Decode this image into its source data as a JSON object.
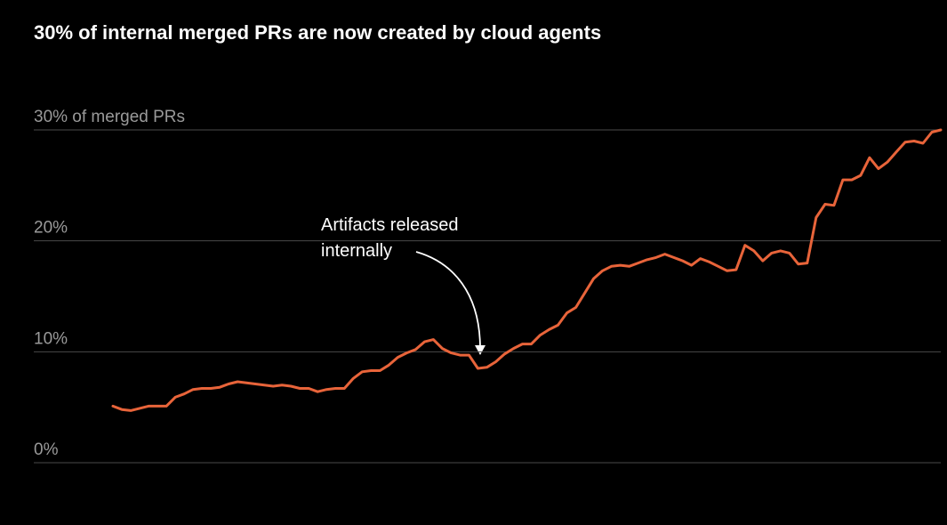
{
  "chart_data": {
    "type": "line",
    "title": "30% of internal merged PRs are now created by cloud agents",
    "annotation": [
      "Artifacts released",
      "internally"
    ],
    "color": "#e8643a",
    "grid": true,
    "ylim": [
      0,
      30
    ],
    "yticks": [
      {
        "value": 0,
        "label": "0%"
      },
      {
        "value": 10,
        "label": "10%"
      },
      {
        "value": 20,
        "label": "20%"
      },
      {
        "value": 30,
        "label": "30% of merged PRs"
      }
    ],
    "values": [
      5.1,
      4.8,
      4.7,
      4.9,
      5.1,
      5.1,
      5.1,
      5.9,
      6.2,
      6.6,
      6.7,
      6.7,
      6.8,
      7.1,
      7.3,
      7.2,
      7.1,
      7.0,
      6.9,
      7.0,
      6.9,
      6.7,
      6.7,
      6.4,
      6.6,
      6.7,
      6.7,
      7.6,
      8.2,
      8.3,
      8.3,
      8.8,
      9.5,
      9.9,
      10.2,
      10.9,
      11.1,
      10.3,
      9.9,
      9.7,
      9.7,
      8.5,
      8.6,
      9.1,
      9.8,
      10.3,
      10.7,
      10.7,
      11.5,
      12.0,
      12.4,
      13.5,
      14.0,
      15.3,
      16.6,
      17.3,
      17.7,
      17.8,
      17.7,
      18.0,
      18.3,
      18.5,
      18.8,
      18.5,
      18.2,
      17.8,
      18.4,
      18.1,
      17.7,
      17.3,
      17.4,
      19.6,
      19.1,
      18.2,
      18.9,
      19.1,
      18.9,
      17.9,
      18.0,
      22.1,
      23.3,
      23.2,
      25.5,
      25.5,
      25.9,
      27.5,
      26.5,
      27.1,
      28.0,
      28.9,
      29.0,
      28.8,
      29.8,
      30.0
    ]
  }
}
